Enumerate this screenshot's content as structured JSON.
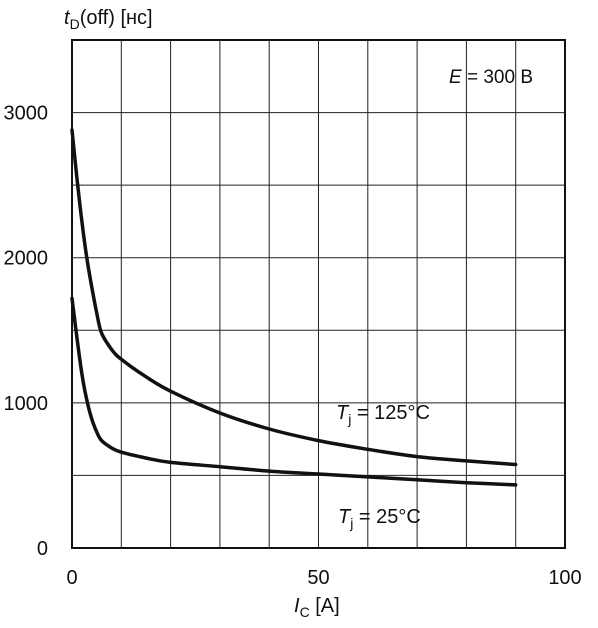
{
  "chart_data": {
    "type": "line",
    "ylabel_main": "t",
    "ylabel_sub": "D",
    "ylabel_rest": "(off) [нс]",
    "xlabel_main": "I",
    "xlabel_sub": "C",
    "xlabel_rest": " [A]",
    "annotation_main": "E",
    "annotation_rest": " = 300 В",
    "xlim": [
      0,
      100
    ],
    "ylim": [
      0,
      3500
    ],
    "x_ticks": [
      0,
      50,
      100
    ],
    "x_tick_labels": [
      "0",
      "50",
      "100"
    ],
    "y_ticks": [
      0,
      1000,
      2000,
      3000
    ],
    "y_tick_labels": [
      "0",
      "1000",
      "2000",
      "3000"
    ],
    "grid": true,
    "grid_x_step": 10,
    "grid_y_step": 500,
    "series": [
      {
        "name_main": "T",
        "name_sub": "j",
        "name_rest": " = 125°C",
        "x": [
          0,
          1,
          2,
          3,
          4,
          5,
          6,
          8,
          10,
          15,
          20,
          30,
          40,
          50,
          60,
          70,
          80,
          90
        ],
        "y": [
          2880,
          2550,
          2250,
          2000,
          1800,
          1620,
          1480,
          1370,
          1300,
          1180,
          1080,
          930,
          820,
          740,
          680,
          630,
          600,
          575
        ]
      },
      {
        "name_main": "T",
        "name_sub": "j",
        "name_rest": " = 25°C",
        "x": [
          0,
          1,
          2,
          3,
          4,
          5,
          6,
          8,
          10,
          15,
          20,
          30,
          40,
          50,
          60,
          70,
          80,
          90
        ],
        "y": [
          1720,
          1450,
          1200,
          1020,
          890,
          800,
          740,
          690,
          660,
          620,
          590,
          560,
          530,
          510,
          490,
          470,
          450,
          435
        ]
      }
    ]
  }
}
